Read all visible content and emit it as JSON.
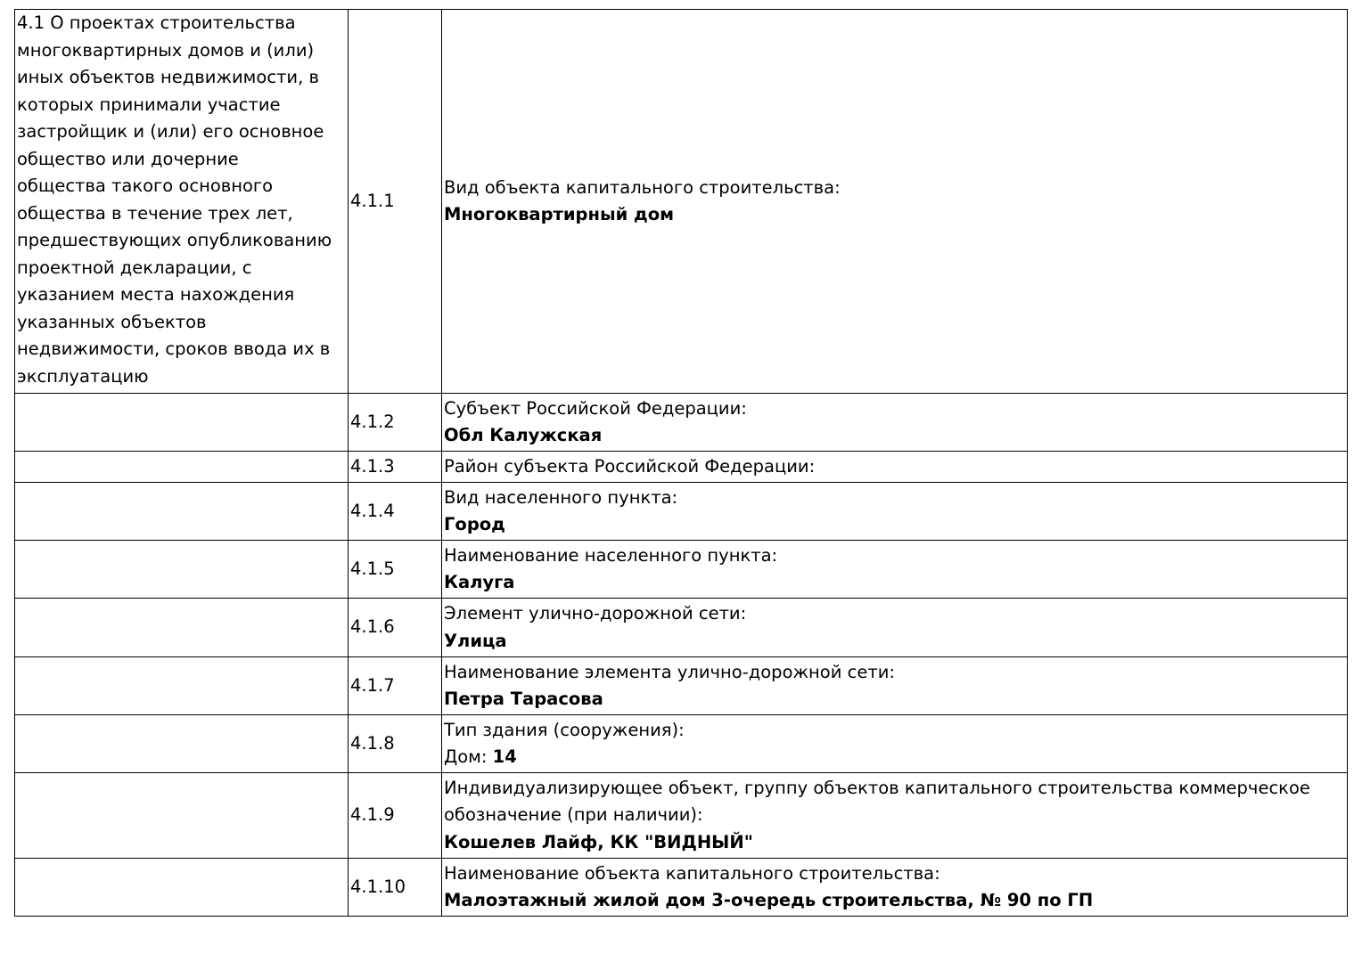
{
  "section": {
    "lines": [
      "4.1 О проектах строительства",
      "многоквартирных домов и (или)",
      "иных объектов недвижимости, в",
      "которых принимали участие",
      "застройщик и (или) его основное",
      "общество или дочерние",
      "общества такого основного",
      "общества в течение трех лет,",
      "предшествующих опубликованию",
      "проектной декларации, с",
      "указанием места нахождения",
      "указанных объектов",
      "недвижимости, сроков ввода их в",
      "эксплуатацию"
    ]
  },
  "rows": [
    {
      "num": "4.1.1",
      "label": [
        "Вид объекта капитального строительства:"
      ],
      "value_prefix": "",
      "value": "Многоквартирный дом"
    },
    {
      "num": "4.1.2",
      "label": [
        "Субъект Российской Федерации:"
      ],
      "value_prefix": "",
      "value": "Обл Калужская"
    },
    {
      "num": "4.1.3",
      "label": [
        "Район субъекта Российской Федерации:"
      ],
      "value_prefix": "",
      "value": ""
    },
    {
      "num": "4.1.4",
      "label": [
        "Вид населенного пункта:"
      ],
      "value_prefix": "",
      "value": "Город"
    },
    {
      "num": "4.1.5",
      "label": [
        "Наименование населенного пункта:"
      ],
      "value_prefix": "",
      "value": "Калуга"
    },
    {
      "num": "4.1.6",
      "label": [
        "Элемент улично-дорожной сети:"
      ],
      "value_prefix": "",
      "value": "Улица"
    },
    {
      "num": "4.1.7",
      "label": [
        "Наименование элемента улично-дорожной сети:"
      ],
      "value_prefix": "",
      "value": "Петра Тарасова"
    },
    {
      "num": "4.1.8",
      "label": [
        "Тип здания (сооружения):"
      ],
      "value_prefix": "Дом: ",
      "value": "14"
    },
    {
      "num": "4.1.9",
      "label": [
        "Индивидуализирующее объект, группу объектов капитального строительства коммерческое",
        "обозначение (при наличии):"
      ],
      "value_prefix": "",
      "value": "Кошелев Лайф, КК \"ВИДНЫЙ\""
    },
    {
      "num": "4.1.10",
      "label": [
        "Наименование объекта капитального строительства:"
      ],
      "value_prefix": "",
      "value": "Малоэтажный жилой дом 3-очередь строительства, № 90 по ГП"
    }
  ]
}
